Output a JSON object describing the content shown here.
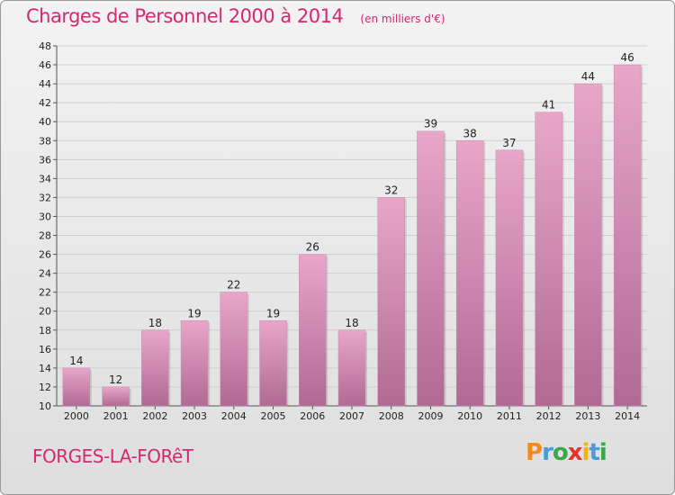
{
  "header": {
    "title": "Charges de Personnel 2000 à 2014",
    "subtitle": "(en milliers d'€)"
  },
  "footer": {
    "place": "FORGES-LA-FORêT",
    "logo": [
      "P",
      "r",
      "o",
      "x",
      "i",
      "t",
      "i"
    ]
  },
  "colors": {
    "title": "#d6286e",
    "bar_top": "#e8a6c9",
    "bar_bottom": "#b06a93",
    "gridline": "#cfcfcf"
  },
  "chart_data": {
    "type": "bar",
    "title": "Charges de Personnel 2000 à 2014",
    "categories": [
      "2000",
      "2001",
      "2002",
      "2003",
      "2004",
      "2005",
      "2006",
      "2007",
      "2008",
      "2009",
      "2010",
      "2011",
      "2012",
      "2013",
      "2014"
    ],
    "values": [
      14,
      12,
      18,
      19,
      22,
      19,
      26,
      18,
      32,
      39,
      38,
      37,
      41,
      44,
      46
    ],
    "ylim": [
      10,
      48
    ],
    "yticks": [
      10,
      12,
      14,
      16,
      18,
      20,
      22,
      24,
      26,
      28,
      30,
      32,
      34,
      36,
      38,
      40,
      42,
      44,
      46,
      48
    ],
    "grid": true,
    "legend": "none"
  }
}
